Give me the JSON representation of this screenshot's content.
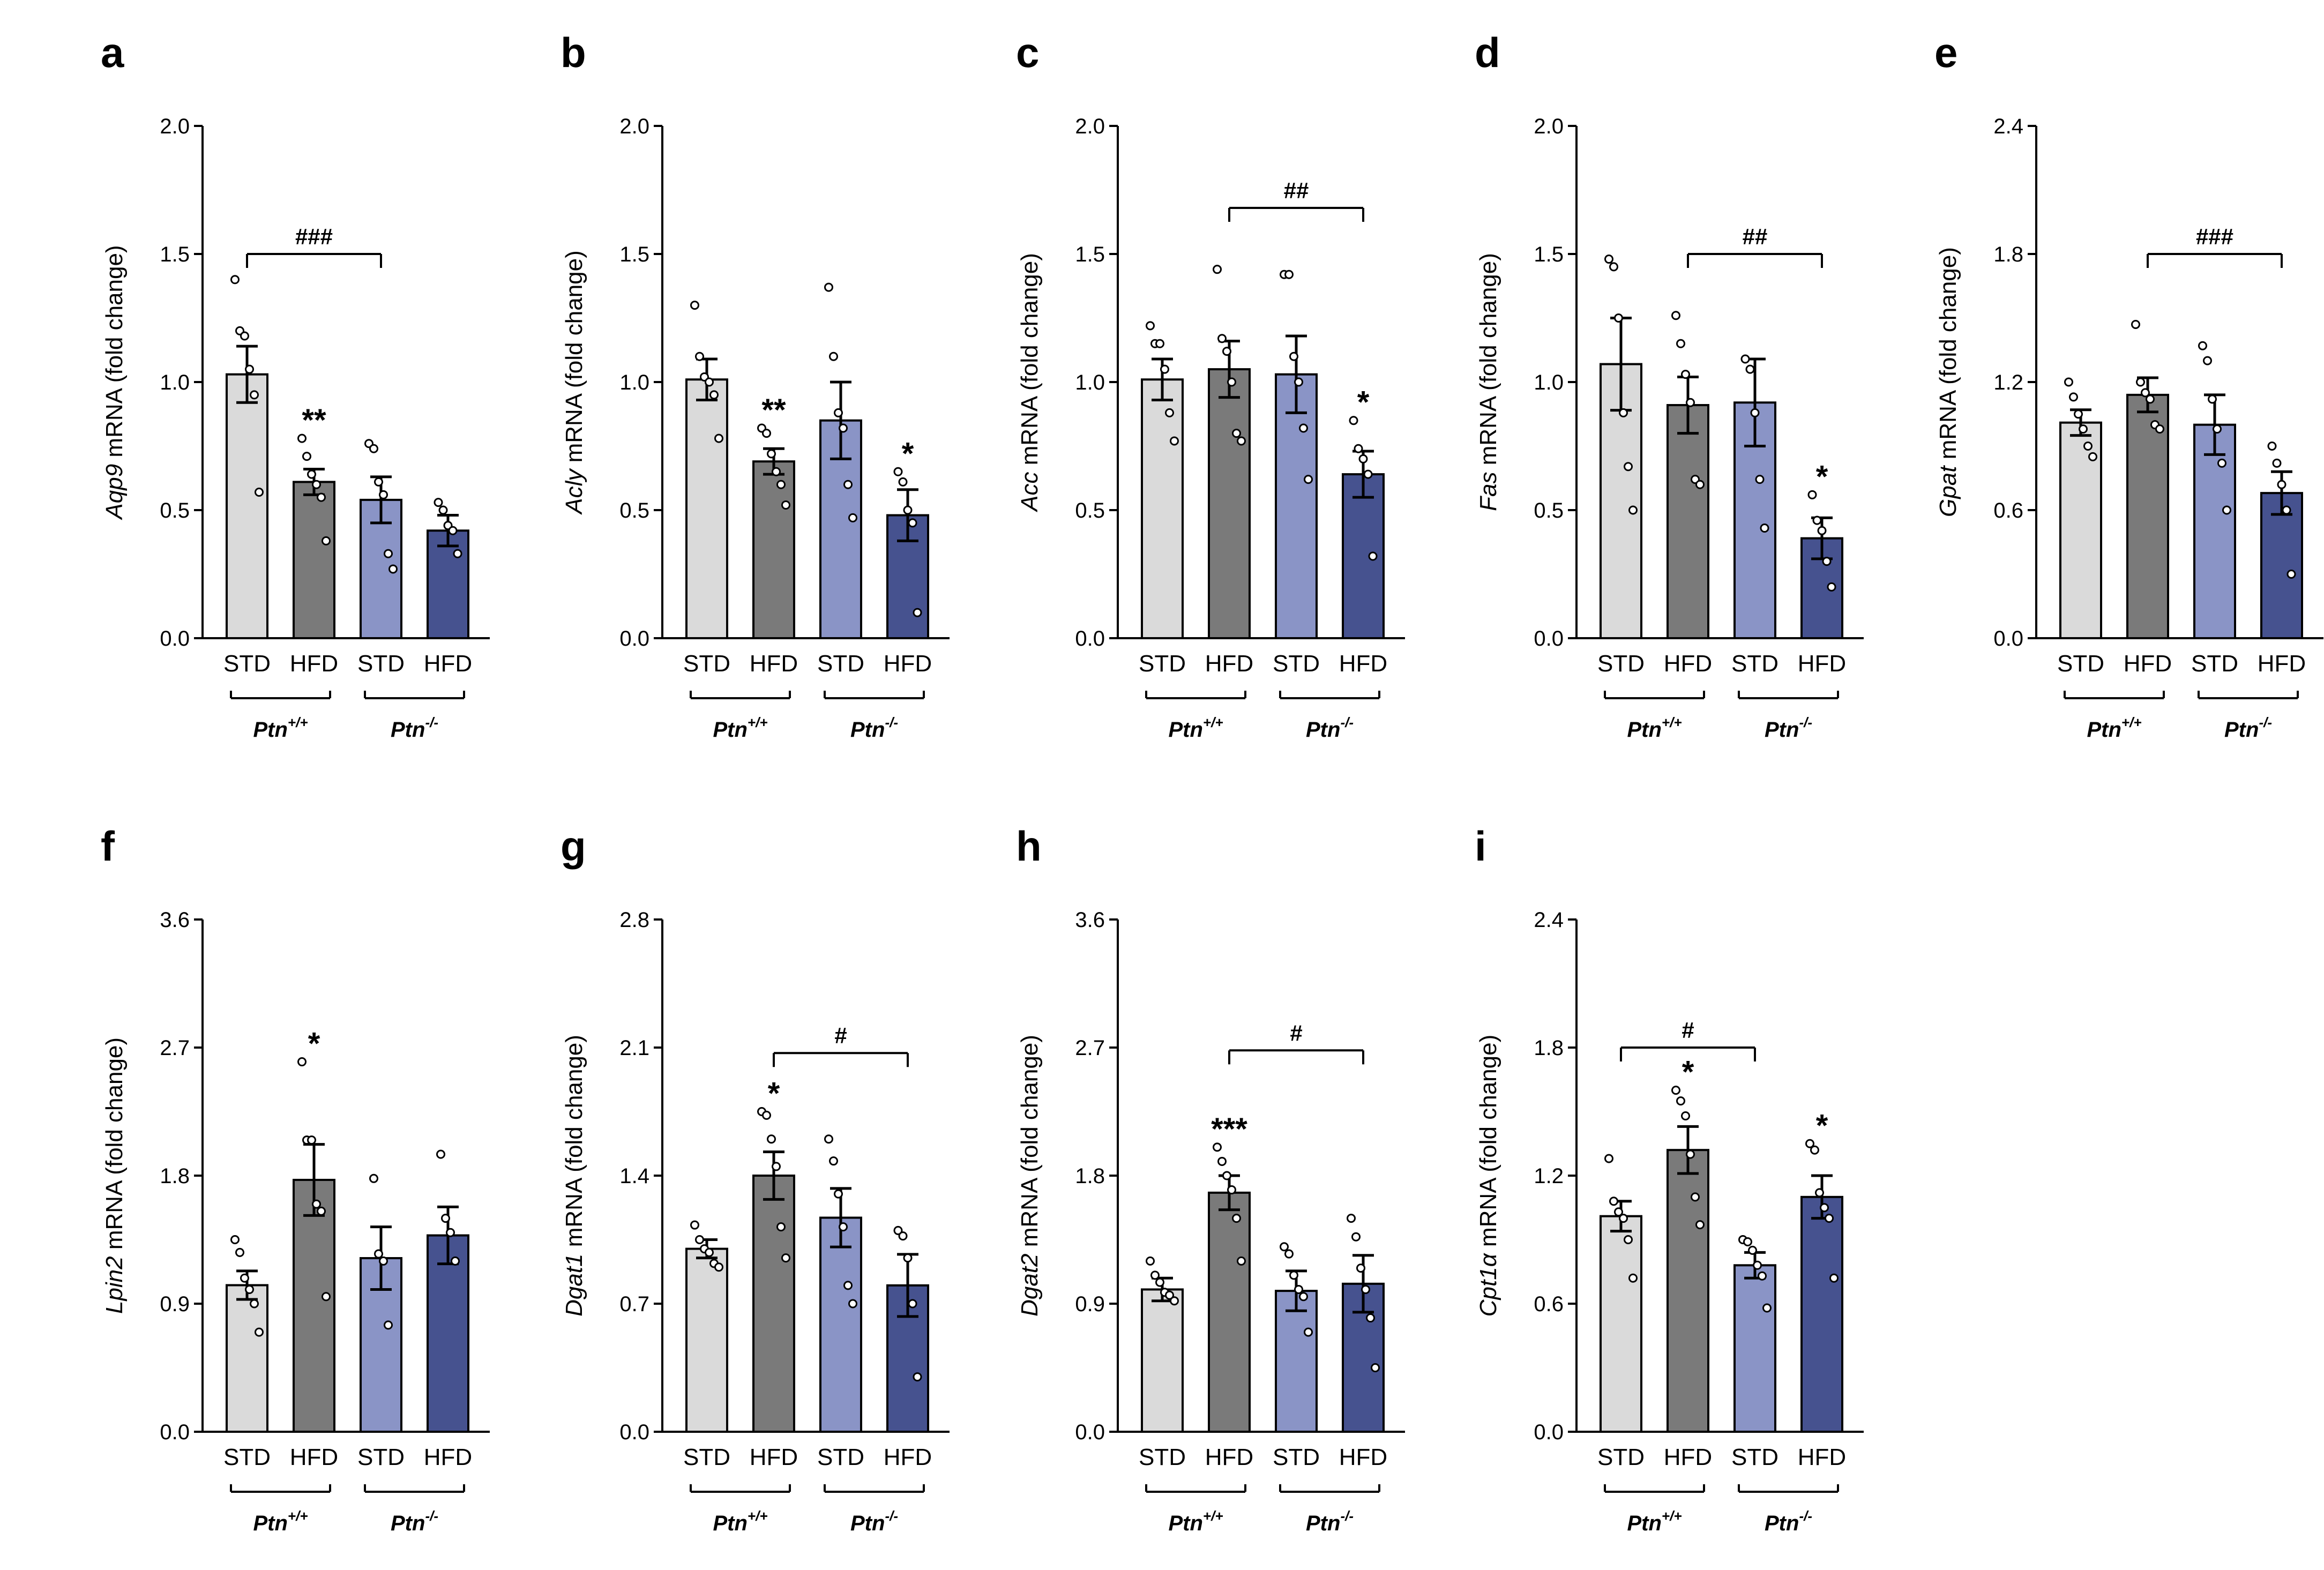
{
  "chart_data": [
    {
      "panel": "a",
      "type": "bar",
      "gene": "Aqp9",
      "ylabel_rest": " mRNA (fold change)",
      "categories": [
        "STD",
        "HFD",
        "STD",
        "HFD"
      ],
      "groups": [
        {
          "label": "Ptn",
          "sup": "+/+"
        },
        {
          "label": "Ptn",
          "sup": "-/-"
        }
      ],
      "ylim": [
        0,
        2.0
      ],
      "yticks": [
        "0.0",
        "0.5",
        "1.0",
        "1.5",
        "2.0"
      ],
      "values": [
        1.03,
        0.61,
        0.54,
        0.42
      ],
      "errors": [
        0.11,
        0.05,
        0.09,
        0.06
      ],
      "points": [
        [
          1.4,
          1.2,
          1.18,
          1.05,
          0.95,
          0.57
        ],
        [
          0.78,
          0.71,
          0.64,
          0.6,
          0.55,
          0.38
        ],
        [
          0.76,
          0.74,
          0.61,
          0.56,
          0.33,
          0.27
        ],
        [
          0.53,
          0.5,
          0.44,
          0.42,
          0.33
        ]
      ],
      "sig": [
        "",
        "**",
        "",
        ""
      ],
      "bracket": {
        "from": 0,
        "to": 2,
        "label": "###",
        "y": 1.5
      }
    },
    {
      "panel": "b",
      "type": "bar",
      "gene": "Acly",
      "ylabel_rest": " mRNA (fold change)",
      "categories": [
        "STD",
        "HFD",
        "STD",
        "HFD"
      ],
      "groups": [
        {
          "label": "Ptn",
          "sup": "+/+"
        },
        {
          "label": "Ptn",
          "sup": "-/-"
        }
      ],
      "ylim": [
        0,
        2.0
      ],
      "yticks": [
        "0.0",
        "0.5",
        "1.0",
        "1.5",
        "2.0"
      ],
      "values": [
        1.01,
        0.69,
        0.85,
        0.48
      ],
      "errors": [
        0.08,
        0.05,
        0.15,
        0.1
      ],
      "points": [
        [
          1.3,
          1.1,
          1.02,
          1.0,
          0.95,
          0.78
        ],
        [
          0.82,
          0.8,
          0.72,
          0.65,
          0.6,
          0.52
        ],
        [
          1.37,
          1.1,
          0.88,
          0.82,
          0.6,
          0.47
        ],
        [
          0.65,
          0.61,
          0.5,
          0.45,
          0.1
        ]
      ],
      "sig": [
        "",
        "**",
        "",
        "*"
      ],
      "bracket": null
    },
    {
      "panel": "c",
      "type": "bar",
      "gene": "Acc",
      "ylabel_rest": "  mRNA (fold change)",
      "categories": [
        "STD",
        "HFD",
        "STD",
        "HFD"
      ],
      "groups": [
        {
          "label": "Ptn",
          "sup": "+/+"
        },
        {
          "label": "Ptn",
          "sup": "-/-"
        }
      ],
      "ylim": [
        0,
        2.0
      ],
      "yticks": [
        "0.0",
        "0.5",
        "1.0",
        "1.5",
        "2.0"
      ],
      "values": [
        1.01,
        1.05,
        1.03,
        0.64
      ],
      "errors": [
        0.08,
        0.11,
        0.15,
        0.09
      ],
      "points": [
        [
          1.22,
          1.15,
          1.15,
          1.05,
          0.88,
          0.77
        ],
        [
          1.44,
          1.17,
          1.12,
          1.0,
          0.8,
          0.77
        ],
        [
          1.42,
          1.42,
          1.1,
          1.0,
          0.82,
          0.62
        ],
        [
          0.85,
          0.74,
          0.7,
          0.64,
          0.32
        ]
      ],
      "sig": [
        "",
        "",
        "",
        "*"
      ],
      "bracket": {
        "from": 1,
        "to": 3,
        "label": "##",
        "y": 1.68
      }
    },
    {
      "panel": "d",
      "type": "bar",
      "gene": "Fas",
      "ylabel_rest": " mRNA (fold change)",
      "categories": [
        "STD",
        "HFD",
        "STD",
        "HFD"
      ],
      "groups": [
        {
          "label": "Ptn",
          "sup": "+/+"
        },
        {
          "label": "Ptn",
          "sup": "-/-"
        }
      ],
      "ylim": [
        0,
        2.0
      ],
      "yticks": [
        "0.0",
        "0.5",
        "1.0",
        "1.5",
        "2.0"
      ],
      "values": [
        1.07,
        0.91,
        0.92,
        0.39
      ],
      "errors": [
        0.18,
        0.11,
        0.17,
        0.08
      ],
      "points": [
        [
          1.48,
          1.45,
          1.25,
          0.88,
          0.67,
          0.5
        ],
        [
          1.26,
          1.15,
          1.03,
          0.92,
          0.62,
          0.6
        ],
        [
          1.09,
          1.05,
          0.88,
          0.62,
          0.43
        ],
        [
          0.56,
          0.46,
          0.42,
          0.3,
          0.2
        ]
      ],
      "sig": [
        "",
        "",
        "",
        "*"
      ],
      "bracket": {
        "from": 1,
        "to": 3,
        "label": "##",
        "y": 1.5
      }
    },
    {
      "panel": "e",
      "type": "bar",
      "gene": "Gpat",
      "ylabel_rest": " mRNA (fold change)",
      "categories": [
        "STD",
        "HFD",
        "STD",
        "HFD"
      ],
      "groups": [
        {
          "label": "Ptn",
          "sup": "+/+"
        },
        {
          "label": "Ptn",
          "sup": "-/-"
        }
      ],
      "ylim": [
        0,
        2.4
      ],
      "yticks": [
        "0.0",
        "0.6",
        "1.2",
        "1.8",
        "2.4"
      ],
      "values": [
        1.01,
        1.14,
        1.0,
        0.68
      ],
      "errors": [
        0.06,
        0.08,
        0.14,
        0.1
      ],
      "points": [
        [
          1.2,
          1.13,
          1.05,
          0.98,
          0.9,
          0.85
        ],
        [
          1.47,
          1.2,
          1.15,
          1.12,
          1.0,
          0.98
        ],
        [
          1.37,
          1.3,
          1.12,
          0.98,
          0.82,
          0.6
        ],
        [
          0.9,
          0.82,
          0.72,
          0.6,
          0.3
        ]
      ],
      "sig": [
        "",
        "",
        "",
        ""
      ],
      "bracket": {
        "from": 1,
        "to": 3,
        "label": "###",
        "y": 1.8
      }
    },
    {
      "panel": "f",
      "type": "bar",
      "gene": "Lpin2",
      "ylabel_rest": " mRNA (fold change)",
      "categories": [
        "STD",
        "HFD",
        "STD",
        "HFD"
      ],
      "groups": [
        {
          "label": "Ptn",
          "sup": "+/+"
        },
        {
          "label": "Ptn",
          "sup": "-/-"
        }
      ],
      "ylim": [
        0,
        3.6
      ],
      "yticks": [
        "0.0",
        "0.9",
        "1.8",
        "2.7",
        "3.6"
      ],
      "values": [
        1.03,
        1.77,
        1.22,
        1.38
      ],
      "errors": [
        0.1,
        0.25,
        0.22,
        0.2
      ],
      "points": [
        [
          1.35,
          1.26,
          1.08,
          1.0,
          0.9,
          0.7
        ],
        [
          2.6,
          2.05,
          2.05,
          1.6,
          1.55,
          0.95
        ],
        [
          1.78,
          1.25,
          1.2,
          0.75
        ],
        [
          1.95,
          1.5,
          1.4,
          1.2
        ]
      ],
      "sig": [
        "",
        "*",
        "",
        ""
      ],
      "bracket": null
    },
    {
      "panel": "g",
      "type": "bar",
      "gene": "Dgat1",
      "ylabel_rest": " mRNA (fold change)",
      "categories": [
        "STD",
        "HFD",
        "STD",
        "HFD"
      ],
      "groups": [
        {
          "label": "Ptn",
          "sup": "+/+"
        },
        {
          "label": "Ptn",
          "sup": "-/-"
        }
      ],
      "ylim": [
        0,
        2.8
      ],
      "yticks": [
        "0.0",
        "0.7",
        "1.4",
        "2.1",
        "2.8"
      ],
      "values": [
        1.0,
        1.4,
        1.17,
        0.8
      ],
      "errors": [
        0.05,
        0.13,
        0.16,
        0.17
      ],
      "points": [
        [
          1.13,
          1.05,
          1.0,
          0.98,
          0.92,
          0.9
        ],
        [
          1.75,
          1.73,
          1.6,
          1.45,
          1.12,
          0.95
        ],
        [
          1.6,
          1.48,
          1.3,
          1.12,
          0.8,
          0.7
        ],
        [
          1.1,
          1.07,
          0.95,
          0.7,
          0.3
        ]
      ],
      "sig": [
        "",
        "*",
        "",
        ""
      ],
      "bracket": {
        "from": 1,
        "to": 3,
        "label": "#",
        "y": 2.07
      }
    },
    {
      "panel": "h",
      "type": "bar",
      "gene": "Dgat2",
      "ylabel_rest": " mRNA (fold change)",
      "categories": [
        "STD",
        "HFD",
        "STD",
        "HFD"
      ],
      "groups": [
        {
          "label": "Ptn",
          "sup": "+/+"
        },
        {
          "label": "Ptn",
          "sup": "-/-"
        }
      ],
      "ylim": [
        0,
        3.6
      ],
      "yticks": [
        "0.0",
        "0.9",
        "1.8",
        "2.7",
        "3.6"
      ],
      "values": [
        1.0,
        1.68,
        0.99,
        1.04
      ],
      "errors": [
        0.08,
        0.12,
        0.14,
        0.2
      ],
      "points": [
        [
          1.2,
          1.1,
          1.05,
          0.98,
          0.96,
          0.92
        ],
        [
          2.0,
          1.9,
          1.8,
          1.7,
          1.5,
          1.2
        ],
        [
          1.3,
          1.25,
          1.1,
          1.0,
          0.95,
          0.7
        ],
        [
          1.5,
          1.37,
          1.15,
          1.0,
          0.8,
          0.45
        ]
      ],
      "sig": [
        "",
        "***",
        "",
        ""
      ],
      "bracket": {
        "from": 1,
        "to": 3,
        "label": "#",
        "y": 2.68
      }
    },
    {
      "panel": "i",
      "type": "bar",
      "gene": "Cpt1α",
      "ylabel_rest": " mRNA (fold change)",
      "categories": [
        "STD",
        "HFD",
        "STD",
        "HFD"
      ],
      "groups": [
        {
          "label": "Ptn",
          "sup": "+/+"
        },
        {
          "label": "Ptn",
          "sup": "-/-"
        }
      ],
      "ylim": [
        0,
        2.4
      ],
      "yticks": [
        "0.0",
        "0.6",
        "1.2",
        "1.8",
        "2.4"
      ],
      "values": [
        1.01,
        1.32,
        0.78,
        1.1
      ],
      "errors": [
        0.07,
        0.11,
        0.06,
        0.1
      ],
      "points": [
        [
          1.28,
          1.08,
          1.03,
          1.0,
          0.9,
          0.72
        ],
        [
          1.6,
          1.55,
          1.48,
          1.3,
          1.1,
          0.97
        ],
        [
          0.9,
          0.89,
          0.85,
          0.78,
          0.73,
          0.58
        ],
        [
          1.35,
          1.32,
          1.12,
          1.05,
          1.0,
          0.72
        ]
      ],
      "sig": [
        "",
        "*",
        "",
        "*"
      ],
      "bracket": {
        "from": 0,
        "to": 2,
        "label": "#",
        "y": 1.8
      }
    }
  ],
  "colors": {
    "bars": [
      "#dadada",
      "#7a7a7a",
      "#8a94c6",
      "#46528f"
    ],
    "axis": "#000000",
    "point_fill": "#ffffff"
  }
}
